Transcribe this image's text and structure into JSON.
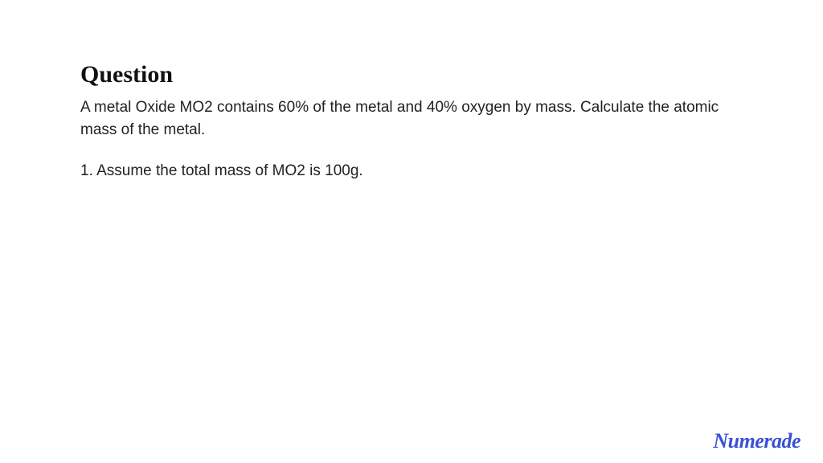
{
  "question": {
    "heading": "Question",
    "body": "A metal Oxide MO2 contains 60% of the metal and 40% oxygen by mass. Calculate the atomic mass of the metal.",
    "step1": "1. Assume the total mass of MO2 is 100g."
  },
  "brand": {
    "name": "Numerade",
    "color": "#3a4fd8"
  },
  "styles": {
    "background": "#ffffff",
    "heading_fontsize": 30,
    "body_fontsize": 19,
    "text_color": "#222222",
    "heading_color": "#111111"
  }
}
